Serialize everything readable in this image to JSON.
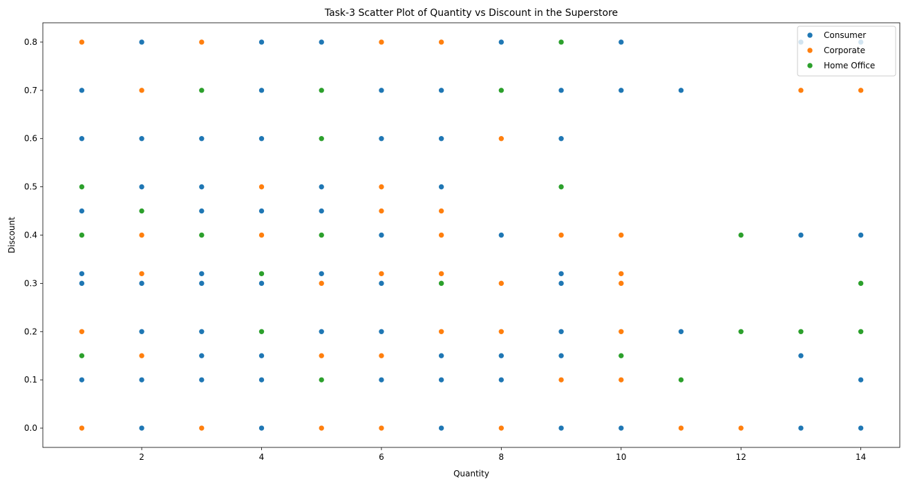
{
  "chart_data": {
    "type": "scatter",
    "title": "Task-3 Scatter Plot of Quantity vs Discount in the Superstore",
    "xlabel": "Quantity",
    "ylabel": "Discount",
    "xlim": [
      0.35,
      14.65
    ],
    "ylim": [
      -0.04,
      0.84
    ],
    "xticks": [
      2,
      4,
      6,
      8,
      10,
      12,
      14
    ],
    "yticks": [
      0.0,
      0.1,
      0.2,
      0.3,
      0.4,
      0.5,
      0.6,
      0.7,
      0.8
    ],
    "xtick_labels": [
      "2",
      "4",
      "6",
      "8",
      "10",
      "12",
      "14"
    ],
    "ytick_labels": [
      "0.0",
      "0.1",
      "0.2",
      "0.3",
      "0.4",
      "0.5",
      "0.6",
      "0.7",
      "0.8"
    ],
    "legend_position": "top-right",
    "grid": false,
    "series": [
      {
        "name": "Consumer",
        "color": "#1f77b4",
        "points": [
          [
            1,
            0.7
          ],
          [
            1,
            0.6
          ],
          [
            1,
            0.45
          ],
          [
            1,
            0.32
          ],
          [
            1,
            0.3
          ],
          [
            1,
            0.1
          ],
          [
            2,
            0.8
          ],
          [
            2,
            0.6
          ],
          [
            2,
            0.5
          ],
          [
            2,
            0.3
          ],
          [
            2,
            0.2
          ],
          [
            2,
            0.1
          ],
          [
            2,
            0.0
          ],
          [
            3,
            0.6
          ],
          [
            3,
            0.5
          ],
          [
            3,
            0.45
          ],
          [
            3,
            0.32
          ],
          [
            3,
            0.3
          ],
          [
            3,
            0.2
          ],
          [
            3,
            0.15
          ],
          [
            3,
            0.1
          ],
          [
            4,
            0.8
          ],
          [
            4,
            0.7
          ],
          [
            4,
            0.6
          ],
          [
            4,
            0.45
          ],
          [
            4,
            0.3
          ],
          [
            4,
            0.15
          ],
          [
            4,
            0.1
          ],
          [
            4,
            0.0
          ],
          [
            5,
            0.8
          ],
          [
            5,
            0.5
          ],
          [
            5,
            0.45
          ],
          [
            5,
            0.32
          ],
          [
            5,
            0.2
          ],
          [
            6,
            0.7
          ],
          [
            6,
            0.6
          ],
          [
            6,
            0.4
          ],
          [
            6,
            0.3
          ],
          [
            6,
            0.2
          ],
          [
            6,
            0.1
          ],
          [
            7,
            0.7
          ],
          [
            7,
            0.6
          ],
          [
            7,
            0.5
          ],
          [
            7,
            0.15
          ],
          [
            7,
            0.1
          ],
          [
            7,
            0.0
          ],
          [
            8,
            0.8
          ],
          [
            8,
            0.4
          ],
          [
            8,
            0.15
          ],
          [
            8,
            0.1
          ],
          [
            9,
            0.7
          ],
          [
            9,
            0.6
          ],
          [
            9,
            0.32
          ],
          [
            9,
            0.3
          ],
          [
            9,
            0.2
          ],
          [
            9,
            0.15
          ],
          [
            9,
            0.0
          ],
          [
            10,
            0.8
          ],
          [
            10,
            0.7
          ],
          [
            10,
            0.0
          ],
          [
            11,
            0.7
          ],
          [
            11,
            0.2
          ],
          [
            13,
            0.8
          ],
          [
            13,
            0.4
          ],
          [
            13,
            0.15
          ],
          [
            13,
            0.0
          ],
          [
            14,
            0.8
          ],
          [
            14,
            0.4
          ],
          [
            14,
            0.1
          ],
          [
            14,
            0.0
          ]
        ]
      },
      {
        "name": "Corporate",
        "color": "#ff7f0e",
        "points": [
          [
            1,
            0.8
          ],
          [
            1,
            0.2
          ],
          [
            1,
            0.0
          ],
          [
            2,
            0.7
          ],
          [
            2,
            0.4
          ],
          [
            2,
            0.32
          ],
          [
            2,
            0.15
          ],
          [
            3,
            0.8
          ],
          [
            3,
            0.0
          ],
          [
            4,
            0.5
          ],
          [
            4,
            0.4
          ],
          [
            5,
            0.3
          ],
          [
            5,
            0.15
          ],
          [
            5,
            0.0
          ],
          [
            6,
            0.8
          ],
          [
            6,
            0.5
          ],
          [
            6,
            0.45
          ],
          [
            6,
            0.32
          ],
          [
            6,
            0.15
          ],
          [
            6,
            0.0
          ],
          [
            7,
            0.8
          ],
          [
            7,
            0.45
          ],
          [
            7,
            0.4
          ],
          [
            7,
            0.32
          ],
          [
            7,
            0.2
          ],
          [
            8,
            0.6
          ],
          [
            8,
            0.3
          ],
          [
            8,
            0.2
          ],
          [
            8,
            0.0
          ],
          [
            9,
            0.4
          ],
          [
            9,
            0.1
          ],
          [
            10,
            0.4
          ],
          [
            10,
            0.32
          ],
          [
            10,
            0.3
          ],
          [
            10,
            0.2
          ],
          [
            10,
            0.1
          ],
          [
            11,
            0.0
          ],
          [
            12,
            0.0
          ],
          [
            13,
            0.7
          ],
          [
            14,
            0.7
          ]
        ]
      },
      {
        "name": "Home Office",
        "color": "#2ca02c",
        "points": [
          [
            1,
            0.5
          ],
          [
            1,
            0.4
          ],
          [
            1,
            0.15
          ],
          [
            2,
            0.45
          ],
          [
            3,
            0.7
          ],
          [
            3,
            0.4
          ],
          [
            4,
            0.32
          ],
          [
            4,
            0.2
          ],
          [
            5,
            0.7
          ],
          [
            5,
            0.6
          ],
          [
            5,
            0.4
          ],
          [
            5,
            0.1
          ],
          [
            7,
            0.3
          ],
          [
            8,
            0.7
          ],
          [
            9,
            0.8
          ],
          [
            9,
            0.5
          ],
          [
            10,
            0.15
          ],
          [
            11,
            0.1
          ],
          [
            12,
            0.4
          ],
          [
            12,
            0.2
          ],
          [
            13,
            0.2
          ],
          [
            14,
            0.3
          ],
          [
            14,
            0.2
          ]
        ]
      }
    ]
  }
}
